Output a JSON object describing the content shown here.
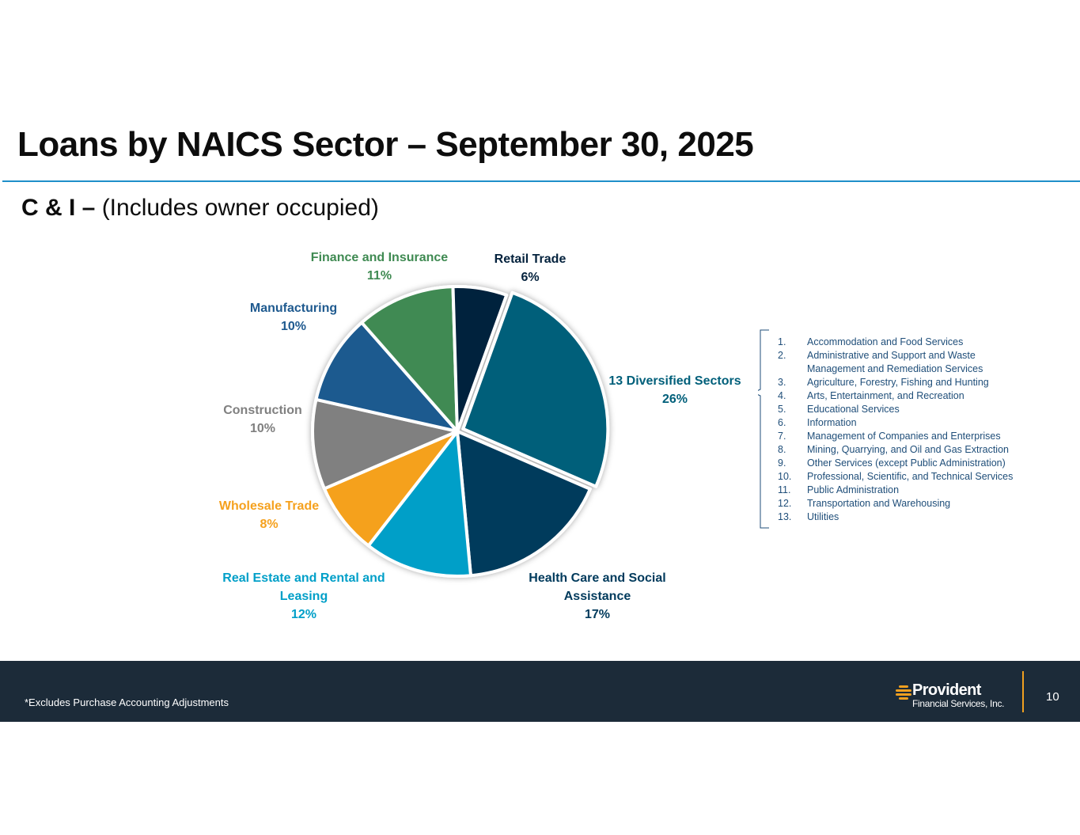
{
  "title": "Loans by NAICS Sector – September 30, 2025",
  "subtitle": {
    "bold": "C & I –",
    "rest": " (Includes owner occupied)"
  },
  "chart_data": {
    "type": "pie",
    "slices": [
      {
        "name": "13 Diversified Sectors",
        "value": 26,
        "label": "26%",
        "color": "#005f7a"
      },
      {
        "name": "Health Care and Social Assistance",
        "value": 17,
        "label": "17%",
        "color": "#003a5c"
      },
      {
        "name": "Real Estate and Rental and Leasing",
        "value": 12,
        "label": "12%",
        "color": "#009fc8"
      },
      {
        "name": "Wholesale Trade",
        "value": 8,
        "label": "8%",
        "color": "#f5a11e"
      },
      {
        "name": "Construction",
        "value": 10,
        "label": "10%",
        "color": "#808080"
      },
      {
        "name": "Manufacturing",
        "value": 10,
        "label": "10%",
        "color": "#1f5a8f"
      },
      {
        "name": "Finance and Insurance",
        "value": 11,
        "label": "11%",
        "color": "#3f8a52"
      },
      {
        "name": "Retail Trade",
        "value": 6,
        "label": "6%",
        "color": "#04223d"
      }
    ],
    "exploded": "13 Diversified Sectors"
  },
  "labels": {
    "diversified": {
      "line1": "13 Diversified Sectors",
      "pct": "26%"
    },
    "health": {
      "line1": "Health Care and Social",
      "line2": "Assistance",
      "pct": "17%"
    },
    "realestate": {
      "line1": "Real Estate and Rental and",
      "line2": "Leasing",
      "pct": "12%"
    },
    "wholesale": {
      "line1": "Wholesale Trade",
      "pct": "8%"
    },
    "construction": {
      "line1": "Construction",
      "pct": "10%"
    },
    "manufacturing": {
      "line1": "Manufacturing",
      "pct": "10%"
    },
    "finance": {
      "line1": "Finance and Insurance",
      "pct": "11%"
    },
    "retail": {
      "line1": "Retail Trade",
      "pct": "6%"
    }
  },
  "sectors_list": [
    {
      "num": "1.",
      "text": "Accommodation and Food Services"
    },
    {
      "num": "2.",
      "text": "Administrative and Support and Waste"
    },
    {
      "num": "",
      "text": "Management and Remediation Services"
    },
    {
      "num": "3.",
      "text": "Agriculture, Forestry, Fishing and Hunting"
    },
    {
      "num": "4.",
      "text": "Arts, Entertainment, and Recreation"
    },
    {
      "num": "5.",
      "text": "Educational Services"
    },
    {
      "num": "6.",
      "text": "Information"
    },
    {
      "num": "7.",
      "text": "Management of Companies and Enterprises"
    },
    {
      "num": "8.",
      "text": "Mining, Quarrying, and Oil and Gas Extraction"
    },
    {
      "num": "9.",
      "text": "Other Services (except Public Administration)"
    },
    {
      "num": "10.",
      "text": "Professional, Scientific, and Technical Services"
    },
    {
      "num": "11.",
      "text": "Public Administration"
    },
    {
      "num": "12.",
      "text": "Transportation and Warehousing"
    },
    {
      "num": "13.",
      "text": "Utilities"
    }
  ],
  "footer": {
    "footnote": "*Excludes Purchase Accounting Adjustments",
    "logo_name": "Provident",
    "logo_sub": "Financial Services, Inc.",
    "page_number": "10",
    "accent_color": "#f0a020"
  }
}
